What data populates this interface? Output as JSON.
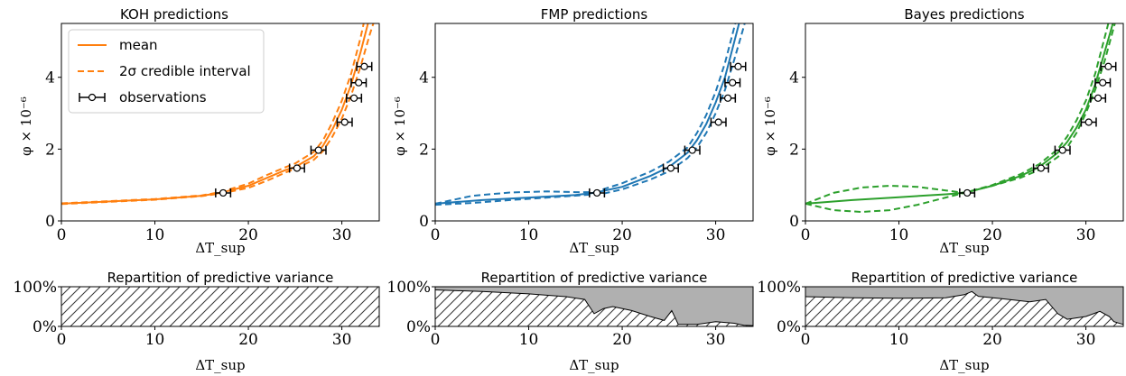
{
  "colors": {
    "koh": "#ff7f0e",
    "fmp": "#1f77b4",
    "bayes": "#2ca02c",
    "fill": "#b0b0b0",
    "obs": "#000000"
  },
  "legend": {
    "mean": "mean",
    "ci": "2σ credible interval",
    "obs": "observations"
  },
  "chart_data": [
    {
      "type": "line",
      "title": "KOH predictions",
      "xlabel": "ΔT_sup",
      "ylabel": "φ × 10⁻⁶",
      "xlim": [
        0,
        34
      ],
      "ylim": [
        0,
        5.5
      ],
      "xticks": [
        0,
        10,
        20,
        30
      ],
      "yticks": [
        0,
        2,
        4
      ],
      "color": "koh",
      "legend": true,
      "mean": [
        [
          0,
          0.48
        ],
        [
          5,
          0.54
        ],
        [
          10,
          0.6
        ],
        [
          15,
          0.7
        ],
        [
          17,
          0.78
        ],
        [
          20,
          0.98
        ],
        [
          22,
          1.2
        ],
        [
          24,
          1.42
        ],
        [
          25,
          1.5
        ],
        [
          27,
          1.8
        ],
        [
          28,
          2.1
        ],
        [
          29,
          2.55
        ],
        [
          30,
          3.1
        ],
        [
          31,
          3.8
        ],
        [
          32,
          4.7
        ],
        [
          33,
          5.7
        ]
      ],
      "lower": [
        [
          0,
          0.47
        ],
        [
          5,
          0.53
        ],
        [
          10,
          0.59
        ],
        [
          15,
          0.69
        ],
        [
          17,
          0.76
        ],
        [
          20,
          0.92
        ],
        [
          22,
          1.12
        ],
        [
          24,
          1.35
        ],
        [
          25,
          1.45
        ],
        [
          27,
          1.7
        ],
        [
          28,
          1.95
        ],
        [
          29,
          2.35
        ],
        [
          30,
          2.85
        ],
        [
          31,
          3.5
        ],
        [
          32,
          4.3
        ],
        [
          33,
          5.2
        ],
        [
          33.5,
          5.6
        ]
      ],
      "upper": [
        [
          0,
          0.49
        ],
        [
          5,
          0.55
        ],
        [
          10,
          0.61
        ],
        [
          15,
          0.71
        ],
        [
          17,
          0.8
        ],
        [
          20,
          1.04
        ],
        [
          22,
          1.28
        ],
        [
          24,
          1.5
        ],
        [
          25,
          1.6
        ],
        [
          27,
          1.92
        ],
        [
          28,
          2.25
        ],
        [
          29,
          2.75
        ],
        [
          30,
          3.35
        ],
        [
          31,
          4.1
        ],
        [
          32,
          5.1
        ],
        [
          32.5,
          5.7
        ]
      ],
      "observations": [
        {
          "x": 17.3,
          "y": 0.78,
          "xerr": 0.8
        },
        {
          "x": 25.2,
          "y": 1.47,
          "xerr": 0.8
        },
        {
          "x": 27.5,
          "y": 1.97,
          "xerr": 0.8
        },
        {
          "x": 30.3,
          "y": 2.75,
          "xerr": 0.8
        },
        {
          "x": 31.3,
          "y": 3.42,
          "xerr": 0.8
        },
        {
          "x": 31.8,
          "y": 3.85,
          "xerr": 0.8
        },
        {
          "x": 32.4,
          "y": 4.3,
          "xerr": 0.8
        }
      ]
    },
    {
      "type": "line",
      "title": "FMP predictions",
      "xlabel": "ΔT_sup",
      "ylabel": "φ × 10⁻⁶",
      "xlim": [
        0,
        34
      ],
      "ylim": [
        0,
        5.5
      ],
      "xticks": [
        0,
        10,
        20,
        30
      ],
      "yticks": [
        0,
        2,
        4
      ],
      "color": "fmp",
      "legend": false,
      "mean": [
        [
          0,
          0.48
        ],
        [
          5,
          0.58
        ],
        [
          10,
          0.65
        ],
        [
          15,
          0.72
        ],
        [
          17,
          0.78
        ],
        [
          20,
          0.95
        ],
        [
          23,
          1.25
        ],
        [
          25,
          1.5
        ],
        [
          27,
          1.9
        ],
        [
          28,
          2.25
        ],
        [
          29,
          2.7
        ],
        [
          30,
          3.3
        ],
        [
          31,
          4.0
        ],
        [
          32,
          5.0
        ],
        [
          32.6,
          5.6
        ]
      ],
      "lower": [
        [
          0,
          0.45
        ],
        [
          4,
          0.5
        ],
        [
          8,
          0.58
        ],
        [
          12,
          0.65
        ],
        [
          16,
          0.72
        ],
        [
          18,
          0.76
        ],
        [
          20,
          0.88
        ],
        [
          23,
          1.15
        ],
        [
          25,
          1.38
        ],
        [
          27,
          1.75
        ],
        [
          28,
          2.05
        ],
        [
          29,
          2.45
        ],
        [
          30,
          3.0
        ],
        [
          31,
          3.65
        ],
        [
          32,
          4.5
        ],
        [
          33,
          5.4
        ],
        [
          33.3,
          5.7
        ]
      ],
      "upper": [
        [
          0,
          0.48
        ],
        [
          4,
          0.7
        ],
        [
          8,
          0.79
        ],
        [
          12,
          0.82
        ],
        [
          15,
          0.8
        ],
        [
          17,
          0.8
        ],
        [
          20,
          1.05
        ],
        [
          23,
          1.37
        ],
        [
          25,
          1.65
        ],
        [
          27,
          2.05
        ],
        [
          28,
          2.45
        ],
        [
          29,
          2.95
        ],
        [
          30,
          3.6
        ],
        [
          31,
          4.4
        ],
        [
          31.8,
          5.2
        ],
        [
          32.3,
          5.7
        ]
      ],
      "observations": [
        {
          "x": 17.3,
          "y": 0.78,
          "xerr": 0.8
        },
        {
          "x": 25.2,
          "y": 1.47,
          "xerr": 0.8
        },
        {
          "x": 27.5,
          "y": 1.97,
          "xerr": 0.8
        },
        {
          "x": 30.3,
          "y": 2.75,
          "xerr": 0.8
        },
        {
          "x": 31.3,
          "y": 3.42,
          "xerr": 0.8
        },
        {
          "x": 31.8,
          "y": 3.85,
          "xerr": 0.8
        },
        {
          "x": 32.4,
          "y": 4.3,
          "xerr": 0.8
        }
      ]
    },
    {
      "type": "line",
      "title": "Bayes predictions",
      "xlabel": "ΔT_sup",
      "ylabel": "φ × 10⁻⁶",
      "xlim": [
        0,
        34
      ],
      "ylim": [
        0,
        5.5
      ],
      "xticks": [
        0,
        10,
        20,
        30
      ],
      "yticks": [
        0,
        2,
        4
      ],
      "color": "bayes",
      "legend": false,
      "mean": [
        [
          0,
          0.48
        ],
        [
          5,
          0.58
        ],
        [
          10,
          0.66
        ],
        [
          15,
          0.74
        ],
        [
          17,
          0.78
        ],
        [
          20,
          0.98
        ],
        [
          23,
          1.25
        ],
        [
          25,
          1.5
        ],
        [
          27,
          1.9
        ],
        [
          28,
          2.2
        ],
        [
          29,
          2.6
        ],
        [
          30,
          3.1
        ],
        [
          31,
          3.8
        ],
        [
          32,
          4.7
        ],
        [
          33,
          5.6
        ]
      ],
      "lower": [
        [
          0,
          0.48
        ],
        [
          3,
          0.3
        ],
        [
          6,
          0.25
        ],
        [
          9,
          0.3
        ],
        [
          12,
          0.45
        ],
        [
          15,
          0.65
        ],
        [
          17,
          0.78
        ],
        [
          20,
          0.98
        ],
        [
          23,
          1.2
        ],
        [
          25,
          1.42
        ],
        [
          27,
          1.78
        ],
        [
          28,
          2.05
        ],
        [
          29,
          2.45
        ],
        [
          30,
          3.0
        ],
        [
          31,
          3.65
        ],
        [
          32,
          4.45
        ],
        [
          33,
          5.4
        ],
        [
          33.3,
          5.7
        ]
      ],
      "upper": [
        [
          0,
          0.48
        ],
        [
          3,
          0.78
        ],
        [
          6,
          0.93
        ],
        [
          9,
          0.98
        ],
        [
          12,
          0.95
        ],
        [
          15,
          0.85
        ],
        [
          17,
          0.78
        ],
        [
          20,
          1.0
        ],
        [
          23,
          1.3
        ],
        [
          25,
          1.58
        ],
        [
          27,
          2.0
        ],
        [
          28,
          2.35
        ],
        [
          29,
          2.8
        ],
        [
          30,
          3.35
        ],
        [
          31,
          4.1
        ],
        [
          32,
          5.1
        ],
        [
          32.6,
          5.7
        ]
      ],
      "observations": [
        {
          "x": 17.3,
          "y": 0.78,
          "xerr": 0.8
        },
        {
          "x": 25.2,
          "y": 1.47,
          "xerr": 0.8
        },
        {
          "x": 27.5,
          "y": 1.97,
          "xerr": 0.8
        },
        {
          "x": 30.3,
          "y": 2.75,
          "xerr": 0.8
        },
        {
          "x": 31.3,
          "y": 3.42,
          "xerr": 0.8
        },
        {
          "x": 31.8,
          "y": 3.85,
          "xerr": 0.8
        },
        {
          "x": 32.4,
          "y": 4.3,
          "xerr": 0.8
        }
      ]
    },
    {
      "type": "area",
      "title": "Repartition of predictive variance",
      "xlabel": "ΔT_sup",
      "xlim": [
        0,
        34
      ],
      "ylim": [
        0,
        100
      ],
      "xticks": [
        0,
        10,
        20,
        30
      ],
      "yticks": [
        0,
        100
      ],
      "yticklabels": [
        "0%",
        "100%"
      ],
      "boundary": [
        [
          0,
          100
        ],
        [
          34,
          100
        ]
      ]
    },
    {
      "type": "area",
      "title": "Repartition of predictive variance",
      "xlabel": "ΔT_sup",
      "xlim": [
        0,
        34
      ],
      "ylim": [
        0,
        100
      ],
      "xticks": [
        0,
        10,
        20,
        30
      ],
      "yticks": [
        0,
        100
      ],
      "yticklabels": [
        "0%",
        "100%"
      ],
      "boundary": [
        [
          0,
          92
        ],
        [
          5,
          88
        ],
        [
          10,
          82
        ],
        [
          14,
          75
        ],
        [
          16,
          68
        ],
        [
          17,
          32
        ],
        [
          18,
          45
        ],
        [
          19,
          50
        ],
        [
          21,
          40
        ],
        [
          23,
          25
        ],
        [
          24.5,
          15
        ],
        [
          25.3,
          40
        ],
        [
          26,
          5
        ],
        [
          28,
          5
        ],
        [
          30,
          12
        ],
        [
          32,
          8
        ],
        [
          33,
          3
        ],
        [
          34,
          2
        ]
      ]
    },
    {
      "type": "area",
      "title": "Repartition of predictive variance",
      "xlabel": "ΔT_sup",
      "xlim": [
        0,
        34
      ],
      "ylim": [
        0,
        100
      ],
      "xticks": [
        0,
        10,
        20,
        30
      ],
      "yticks": [
        0,
        100
      ],
      "yticklabels": [
        "0%",
        "100%"
      ],
      "boundary": [
        [
          0,
          75
        ],
        [
          5,
          72
        ],
        [
          10,
          71
        ],
        [
          15,
          72
        ],
        [
          17,
          80
        ],
        [
          17.8,
          88
        ],
        [
          18.5,
          76
        ],
        [
          21,
          70
        ],
        [
          24,
          62
        ],
        [
          25.7,
          68
        ],
        [
          27,
          32
        ],
        [
          28,
          18
        ],
        [
          30,
          25
        ],
        [
          31.5,
          38
        ],
        [
          32.5,
          25
        ],
        [
          33,
          12
        ],
        [
          34,
          5
        ]
      ]
    }
  ]
}
